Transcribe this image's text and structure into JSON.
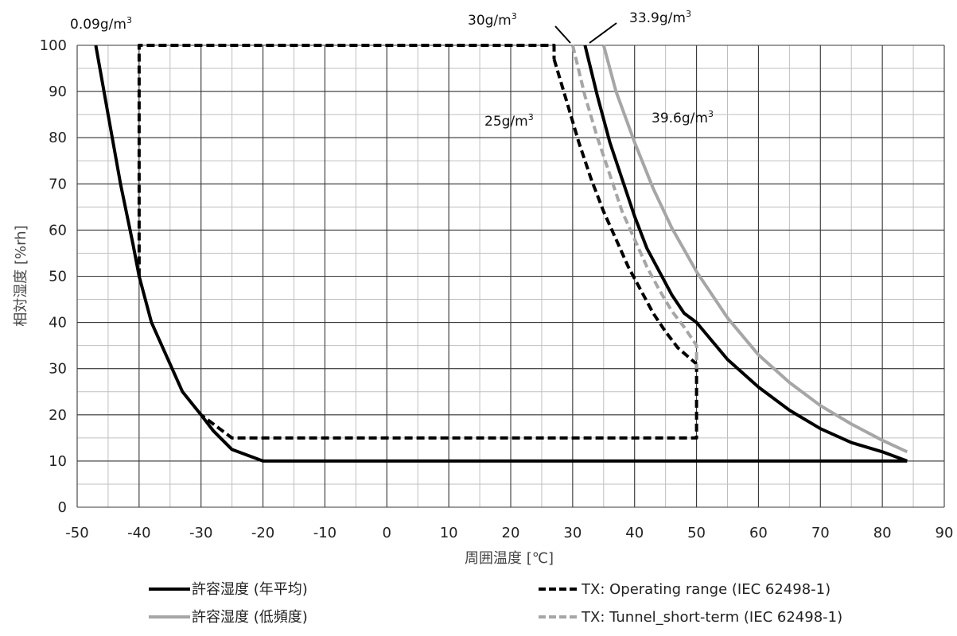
{
  "chart_data": {
    "type": "line",
    "xlabel": "周囲温度 [℃]",
    "ylabel": "相対湿度 [%rh]",
    "xlim": [
      -50,
      90
    ],
    "ylim": [
      0,
      100
    ],
    "x_major_ticks": [
      -50,
      -40,
      -30,
      -20,
      -10,
      0,
      10,
      20,
      30,
      40,
      50,
      60,
      70,
      80,
      90
    ],
    "y_major_ticks": [
      0,
      10,
      20,
      30,
      40,
      50,
      60,
      70,
      80,
      90,
      100
    ],
    "grid": "major and minor (x every 5, y every 5)",
    "legend_position": "bottom",
    "series": [
      {
        "name": "許容湿度 (年平均)",
        "color": "#000000",
        "dash": "solid",
        "points": [
          [
            -47,
            100
          ],
          [
            -45,
            85
          ],
          [
            -43,
            70
          ],
          [
            -41,
            57
          ],
          [
            -40,
            50
          ],
          [
            -38,
            40
          ],
          [
            -35,
            31
          ],
          [
            -33,
            25
          ],
          [
            -30,
            20
          ],
          [
            -28,
            16.5
          ],
          [
            -25,
            12.5
          ],
          [
            -20,
            10
          ],
          [
            84,
            10
          ]
        ]
      },
      {
        "name": "",
        "color": "#000000",
        "dash": "solid",
        "points": [
          [
            32,
            100
          ],
          [
            34,
            89
          ],
          [
            36,
            79
          ],
          [
            38,
            71
          ],
          [
            40,
            63
          ],
          [
            42,
            56
          ],
          [
            44,
            51
          ],
          [
            46,
            46
          ],
          [
            48,
            42
          ],
          [
            50,
            40
          ],
          [
            55,
            32
          ],
          [
            60,
            26
          ],
          [
            65,
            21
          ],
          [
            70,
            17
          ],
          [
            75,
            14
          ],
          [
            80,
            12
          ],
          [
            84,
            10
          ]
        ]
      },
      {
        "name": "許容湿度 (低頻度)",
        "color": "#a6a6a6",
        "dash": "solid",
        "points": [
          [
            35,
            100
          ],
          [
            37,
            90
          ],
          [
            40,
            79
          ],
          [
            43,
            69
          ],
          [
            46,
            60.5
          ],
          [
            50,
            51
          ],
          [
            55,
            41
          ],
          [
            60,
            33
          ],
          [
            65,
            27
          ],
          [
            70,
            22
          ],
          [
            75,
            18
          ],
          [
            80,
            14.5
          ],
          [
            84,
            12
          ]
        ]
      },
      {
        "name": "TX: Operating range (IEC 62498-1)",
        "color": "#000000",
        "dash": "dashed",
        "points": [
          [
            -40,
            50
          ],
          [
            -40,
            100
          ],
          [
            27,
            100
          ],
          [
            27,
            97
          ]
        ]
      },
      {
        "name": "",
        "color": "#000000",
        "dash": "dashed",
        "points": [
          [
            27,
            97
          ],
          [
            29,
            88
          ],
          [
            31,
            79
          ],
          [
            33,
            71
          ],
          [
            35,
            64
          ],
          [
            37,
            58
          ],
          [
            39,
            52
          ],
          [
            41,
            47
          ],
          [
            43,
            42
          ],
          [
            45,
            38
          ],
          [
            47,
            34.5
          ],
          [
            50,
            31
          ]
        ]
      },
      {
        "name": "",
        "color": "#000000",
        "dash": "dashed",
        "points": [
          [
            50,
            31
          ],
          [
            50,
            15
          ],
          [
            -25,
            15
          ],
          [
            -30,
            20
          ]
        ]
      },
      {
        "name": "TX: Tunnel_short-term (IEC 62498-1)",
        "color": "#a6a6a6",
        "dash": "dashed",
        "points": [
          [
            30,
            100
          ],
          [
            32,
            89
          ],
          [
            34,
            80
          ],
          [
            36,
            72
          ],
          [
            38,
            64
          ],
          [
            40,
            58
          ],
          [
            42,
            52
          ],
          [
            44,
            47
          ],
          [
            46,
            42.5
          ],
          [
            48,
            39
          ],
          [
            50,
            35
          ],
          [
            50,
            30
          ]
        ]
      }
    ],
    "annotations": [
      {
        "text": "0.09g/m",
        "sup": "3"
      },
      {
        "text": "30g/m",
        "sup": "3"
      },
      {
        "text": "33.9g/m",
        "sup": "3"
      },
      {
        "text": "25g/m",
        "sup": "3"
      },
      {
        "text": "39.6g/m",
        "sup": "3"
      }
    ],
    "legend": [
      {
        "label": "許容湿度 (年平均)",
        "color": "#000000",
        "dash": "solid"
      },
      {
        "label": "TX: Operating range (IEC 62498-1)",
        "color": "#000000",
        "dash": "dashed"
      },
      {
        "label": "許容湿度 (低頻度)",
        "color": "#a6a6a6",
        "dash": "solid"
      },
      {
        "label": "TX: Tunnel_short-term (IEC 62498-1)",
        "color": "#a6a6a6",
        "dash": "dashed"
      }
    ]
  }
}
